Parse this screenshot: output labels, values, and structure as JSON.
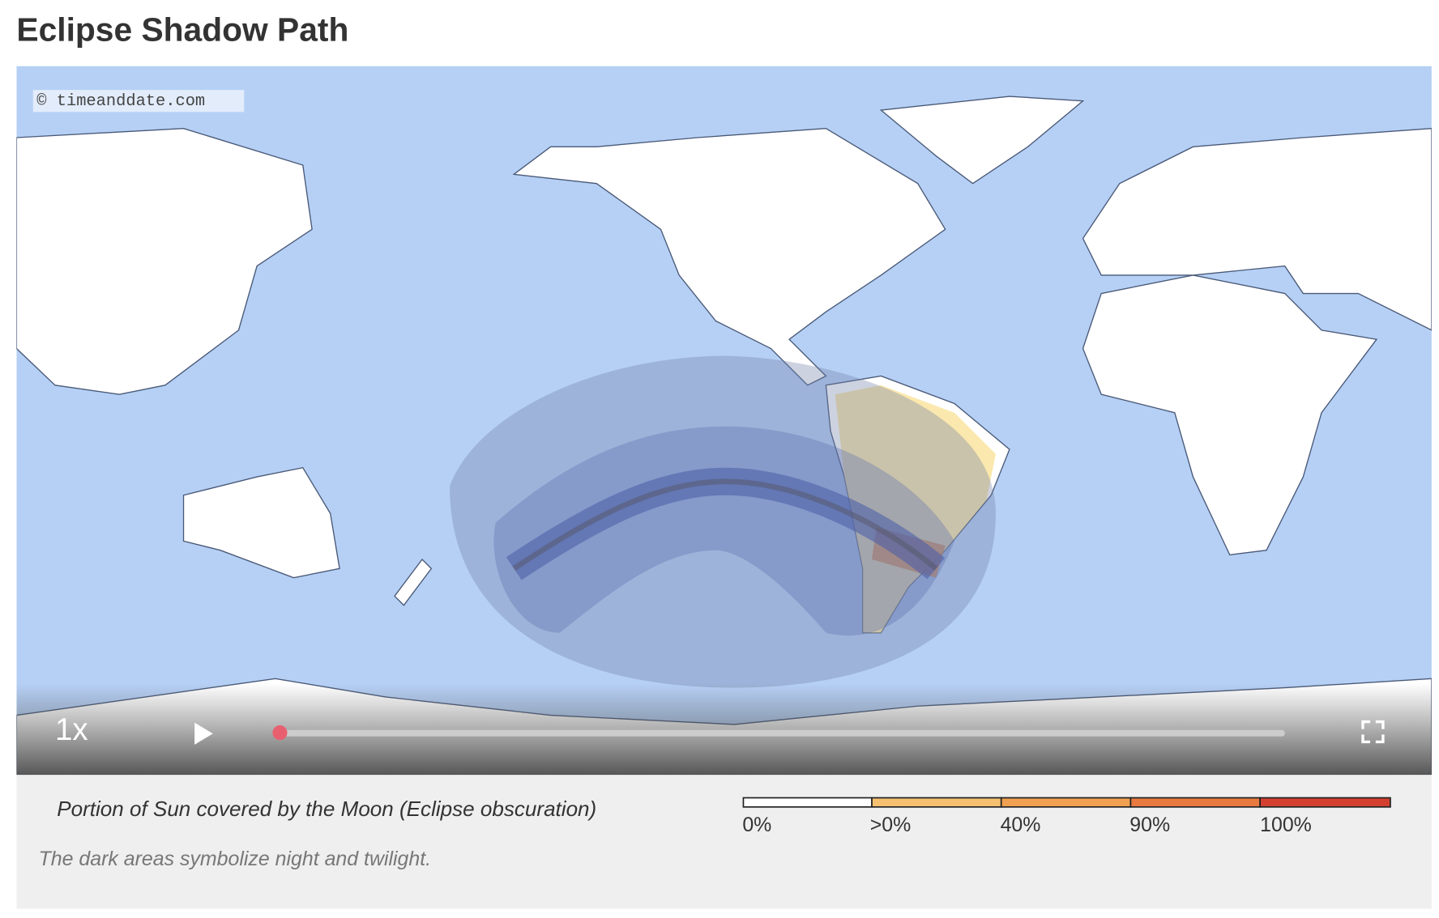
{
  "title": "Eclipse Shadow Path",
  "map": {
    "credit": "© timeanddate.com",
    "speed": "1x"
  },
  "legend": {
    "caption": "Portion of Sun covered by the Moon (Eclipse obscuration)",
    "labels": [
      "0%",
      ">0%",
      "40%",
      "90%",
      "100%"
    ],
    "note": "The dark areas symbolize night and twilight."
  }
}
